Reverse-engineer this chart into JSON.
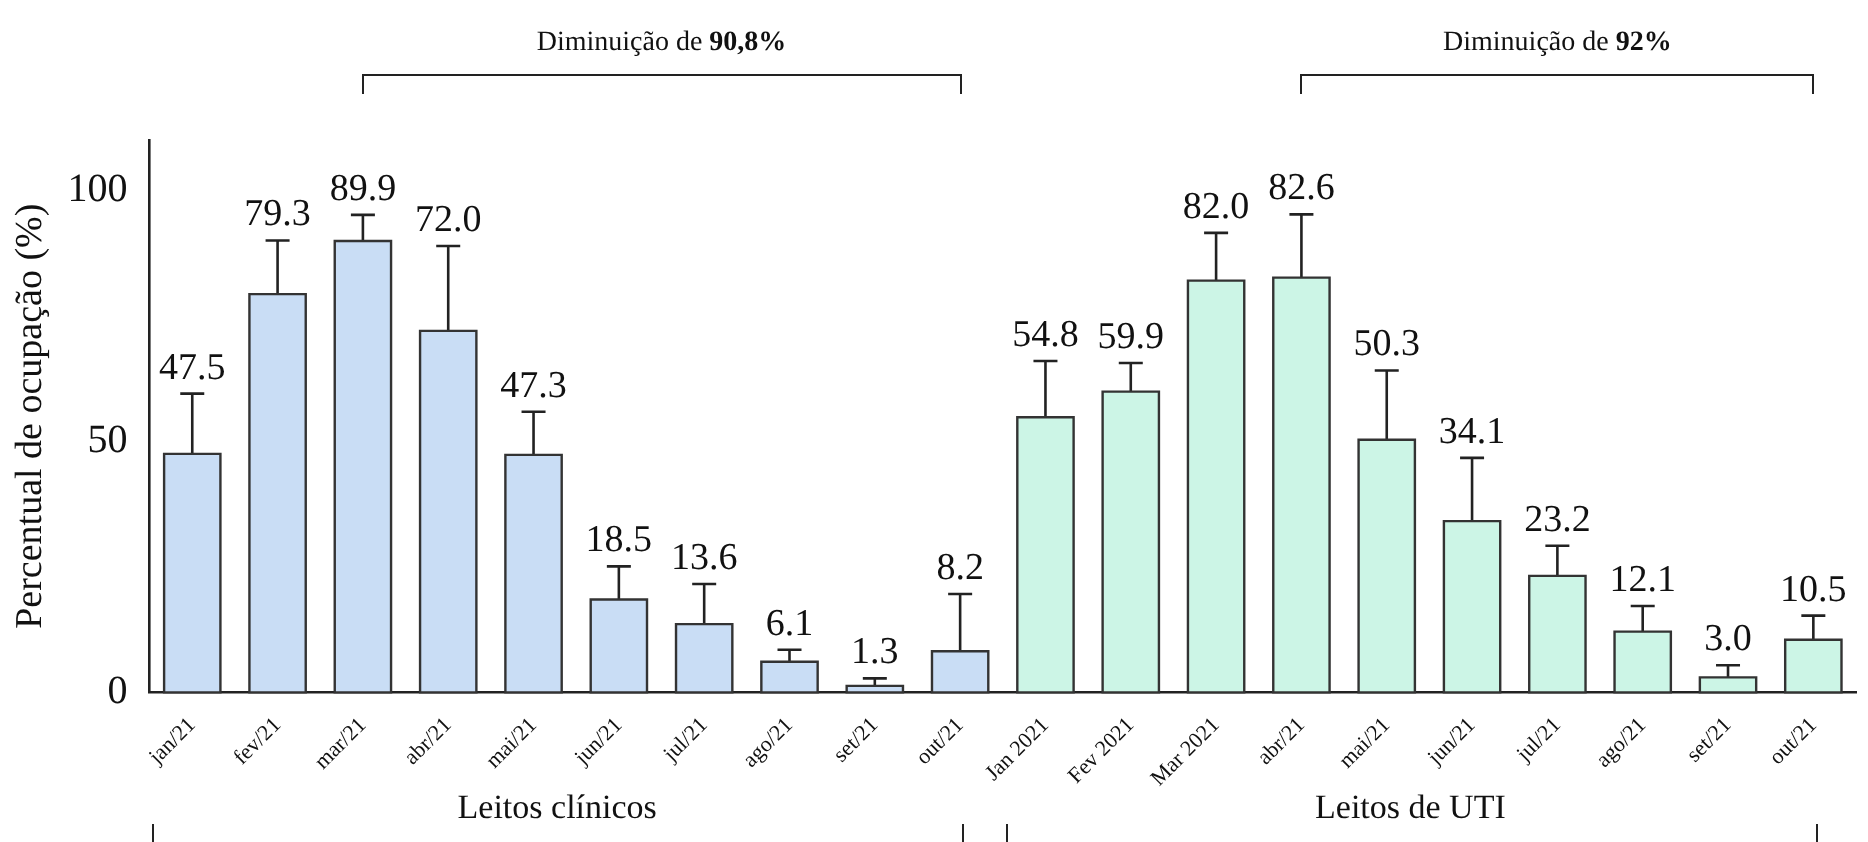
{
  "chart_data": {
    "type": "bar",
    "ylabel": "Percentual de ocupação (%)",
    "categories": [
      "jan/21",
      "fev/21",
      "mar/21",
      "abr/21",
      "mai/21",
      "jun/21",
      "jul/21",
      "ago/21",
      "set/21",
      "out/21",
      "Jan 2021",
      "Fev 2021",
      "Mar 2021",
      "abr/21",
      "mai/21",
      "jun/21",
      "jul/21",
      "ago/21",
      "set/21",
      "out/21"
    ],
    "values": [
      47.5,
      79.3,
      89.9,
      72.0,
      47.3,
      18.5,
      13.6,
      6.1,
      1.3,
      8.2,
      54.8,
      59.9,
      82.0,
      82.6,
      50.3,
      34.1,
      23.2,
      12.1,
      3.0,
      10.5
    ],
    "colors": [
      "#c9ddf5",
      "#c9ddf5",
      "#c9ddf5",
      "#c9ddf5",
      "#c9ddf5",
      "#c9ddf5",
      "#c9ddf5",
      "#c9ddf5",
      "#c9ddf5",
      "#c9ddf5",
      "#ccf5e6",
      "#ccf5e6",
      "#ccf5e6",
      "#ccf5e6",
      "#ccf5e6",
      "#ccf5e6",
      "#ccf5e6",
      "#ccf5e6",
      "#ccf5e6",
      "#ccf5e6"
    ],
    "errors": [
      [
        47.5,
        59.5
      ],
      [
        79.3,
        90.0
      ],
      [
        89.9,
        95.1
      ],
      [
        72.0,
        88.9
      ],
      [
        47.3,
        55.9
      ],
      [
        18.5,
        25.1
      ],
      [
        13.6,
        21.6
      ],
      [
        6.1,
        8.5
      ],
      [
        1.3,
        2.8
      ],
      [
        8.2,
        19.6
      ],
      [
        54.8,
        66.0
      ],
      [
        59.9,
        65.6
      ],
      [
        82.0,
        91.5
      ],
      [
        82.6,
        95.2
      ],
      [
        50.3,
        64.1
      ],
      [
        34.1,
        46.7
      ],
      [
        23.2,
        29.2
      ],
      [
        12.1,
        17.2
      ],
      [
        3.0,
        5.4
      ],
      [
        10.5,
        15.3
      ]
    ],
    "value_labels": [
      "47.5",
      "79.3",
      "89.9",
      "72.0",
      "47.3",
      "18.5",
      "13.6",
      "6.1",
      "1.3",
      "8.2",
      "54.8",
      "59.9",
      "82.0",
      "82.6",
      "50.3",
      "34.1",
      "23.2",
      "12.1",
      "3.0",
      "10.5"
    ],
    "ylim": [
      0,
      110
    ],
    "yticks": [
      0,
      50,
      100
    ],
    "grid": false,
    "legend": false,
    "annotations": [
      "Diminuição de 90,8%",
      "Diminuição de 92%",
      "Leitos clínicos",
      "Leitos de UTI"
    ]
  }
}
